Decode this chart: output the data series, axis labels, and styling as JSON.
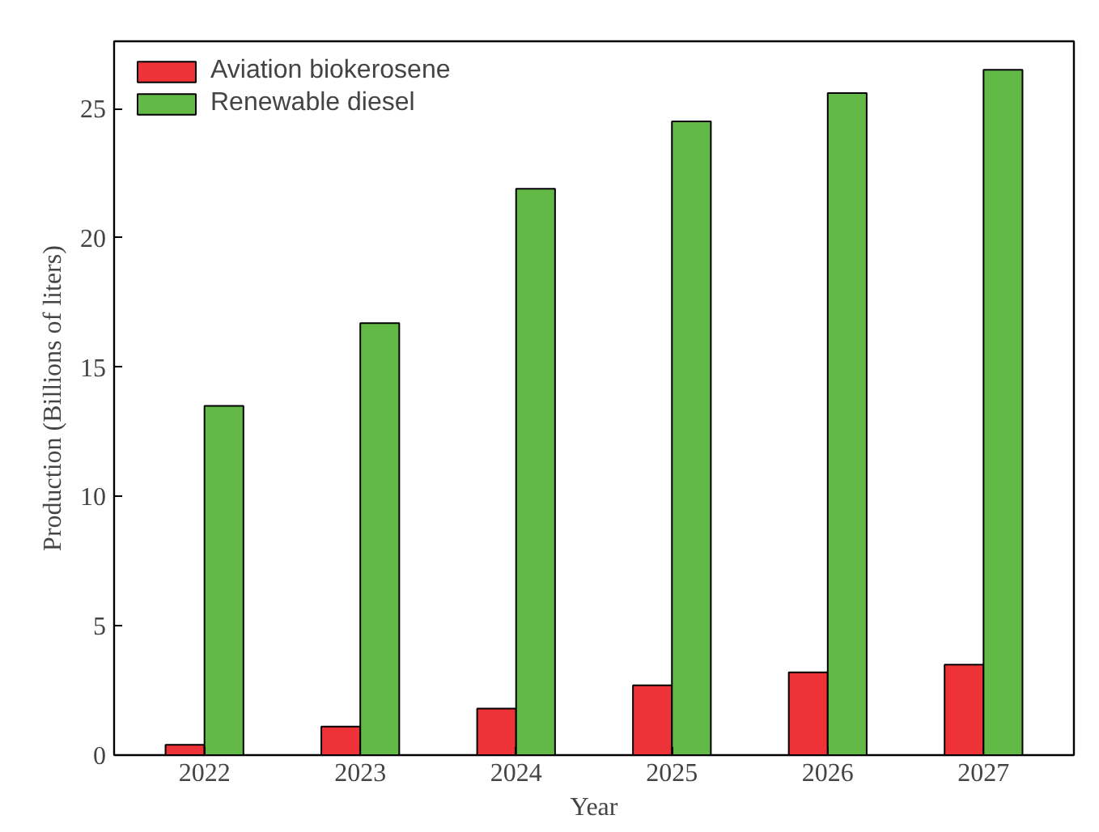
{
  "chart_data": {
    "type": "bar",
    "xlabel": "Year",
    "ylabel": "Production (Billions of liters)",
    "categories": [
      "2022",
      "2023",
      "2024",
      "2025",
      "2026",
      "2027"
    ],
    "series": [
      {
        "name": "Aviation biokerosene",
        "color": "#ee3338",
        "values": [
          0.4,
          1.1,
          1.8,
          2.7,
          3.2,
          3.5
        ]
      },
      {
        "name": "Renewable diesel",
        "color": "#62b946",
        "values": [
          13.5,
          16.7,
          21.9,
          24.5,
          25.6,
          26.5
        ]
      }
    ],
    "ylim": [
      0,
      27.6
    ],
    "yticks": [
      0,
      5,
      10,
      15,
      20,
      25
    ],
    "grid": false,
    "legend": "top left"
  }
}
